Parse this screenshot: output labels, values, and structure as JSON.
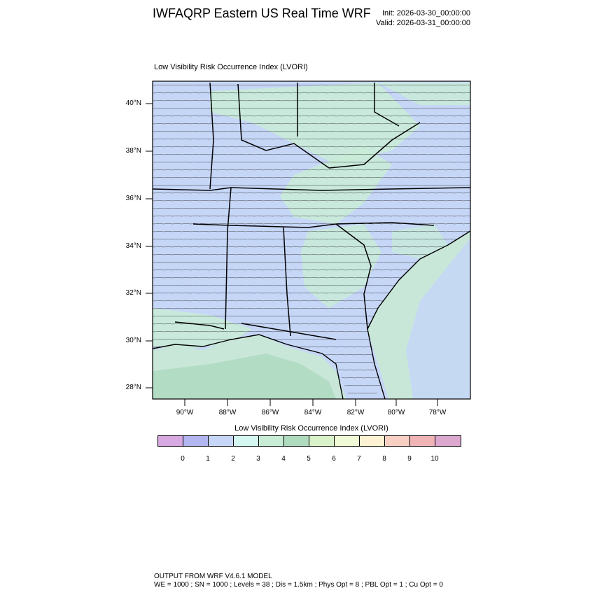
{
  "header": {
    "title": "IWFAQRP Eastern US Real Time WRF",
    "init": "Init: 2026-03-30_00:00:00",
    "valid": "Valid: 2026-03-31_00:00:00"
  },
  "map": {
    "subtitle": "Low Visibility Risk Occurrence Index   (LVORI)",
    "lat_labels": [
      "40°N",
      "38°N",
      "36°N",
      "34°N",
      "32°N",
      "30°N",
      "28°N"
    ],
    "lon_labels": [
      "90°W",
      "88°W",
      "86°W",
      "84°W",
      "82°W",
      "80°W",
      "78°W"
    ],
    "colors": {
      "background_index_2": "#c6d6f7",
      "ocean": "#c9e7d9",
      "gulf_dark": "#b3dcc4",
      "green_index_4": "#c8ecd6"
    }
  },
  "colorbar": {
    "title": "Low Visibility Risk Occurrence Index  (LVORI)",
    "labels": [
      "0",
      "1",
      "2",
      "3",
      "4",
      "5",
      "6",
      "7",
      "8",
      "9",
      "10"
    ],
    "colors": [
      "#d7a8e1",
      "#b2b5ef",
      "#c6d6f7",
      "#d4f7f1",
      "#c8ecd6",
      "#afdbbf",
      "#daf2c9",
      "#f1fad6",
      "#fdf3d2",
      "#f7cfc3",
      "#f0b4b7",
      "#dca8d0"
    ]
  },
  "footer": {
    "line1": "OUTPUT FROM WRF V4.6.1 MODEL",
    "line2": "WE = 1000 ; SN = 1000 ; Levels = 38 ; Dis = 1.5km ; Phys Opt = 8 ; PBL Opt = 1 ; Cu Opt = 0"
  }
}
